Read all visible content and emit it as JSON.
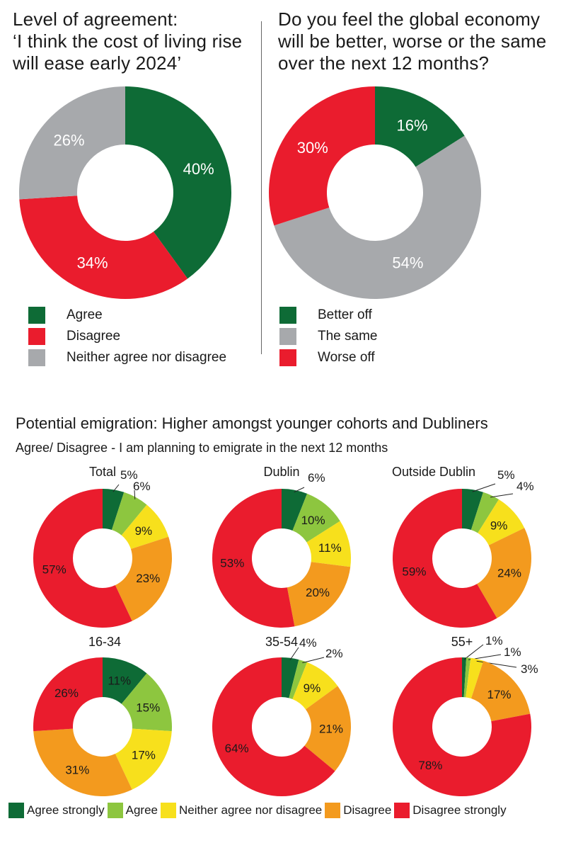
{
  "colors": {
    "agree_strongly": "#0e6b36",
    "agree": "#8dc63f",
    "neither": "#f7e01c",
    "disagree": "#f39a1e",
    "disagree_strongly": "#ea1c2d",
    "grey": "#a7a9ac"
  },
  "top_left": {
    "title_lines": [
      "Level of agreement:",
      "‘I think the cost of living rise",
      "will ease early 2024’"
    ],
    "legend": [
      "Agree",
      "Disagree",
      "Neither agree nor disagree"
    ]
  },
  "top_right": {
    "title_lines": [
      "Do you feel the global economy",
      "will be better, worse or the same",
      "over the next 12 months?"
    ],
    "legend": [
      "Better off",
      "The same",
      "Worse off"
    ]
  },
  "emigration": {
    "heading": "Potential emigration: Higher amongst younger cohorts and Dubliners",
    "subheading": "Agree/ Disagree - I am planning to emigrate in the next 12 months",
    "legend": [
      "Agree strongly",
      "Agree",
      "Neither agree nor disagree",
      "Disagree",
      "Disagree strongly"
    ]
  },
  "chart_data": [
    {
      "type": "pie",
      "id": "cost-of-living",
      "title": "Level of agreement: ‘I think the cost of living rise will ease early 2024’",
      "categories": [
        "Agree",
        "Disagree",
        "Neither agree nor disagree"
      ],
      "values": [
        40,
        34,
        26
      ],
      "labels": [
        "40%",
        "34%",
        "26%"
      ],
      "colors": [
        "#0e6b36",
        "#ea1c2d",
        "#a7a9ac"
      ]
    },
    {
      "type": "pie",
      "id": "global-economy",
      "title": "Do you feel the global economy will be better, worse or the same over the next 12 months?",
      "categories": [
        "Better off",
        "The same",
        "Worse off"
      ],
      "values": [
        16,
        54,
        30
      ],
      "labels": [
        "16%",
        "54%",
        "30%"
      ],
      "colors": [
        "#0e6b36",
        "#a7a9ac",
        "#ea1c2d"
      ]
    },
    {
      "type": "pie",
      "id": "total",
      "title": "Total",
      "categories": [
        "Agree strongly",
        "Agree",
        "Neither agree nor disagree",
        "Disagree",
        "Disagree strongly"
      ],
      "values": [
        5,
        6,
        9,
        23,
        57
      ],
      "labels": [
        "5%",
        "6%",
        "9%",
        "23%",
        "57%"
      ]
    },
    {
      "type": "pie",
      "id": "dublin",
      "title": "Dublin",
      "categories": [
        "Agree strongly",
        "Agree",
        "Neither agree nor disagree",
        "Disagree",
        "Disagree strongly"
      ],
      "values": [
        6,
        10,
        11,
        20,
        53
      ],
      "labels": [
        "6%",
        "10%",
        "11%",
        "20%",
        "53%"
      ]
    },
    {
      "type": "pie",
      "id": "outside-dublin",
      "title": "Outside Dublin",
      "categories": [
        "Agree strongly",
        "Agree",
        "Neither agree nor disagree",
        "Disagree",
        "Disagree strongly"
      ],
      "values": [
        5,
        4,
        9,
        24,
        59
      ],
      "labels": [
        "5%",
        "4%",
        "9%",
        "24%",
        "59%"
      ]
    },
    {
      "type": "pie",
      "id": "age-16-34",
      "title": "16-34",
      "categories": [
        "Agree strongly",
        "Agree",
        "Neither agree nor disagree",
        "Disagree",
        "Disagree strongly"
      ],
      "values": [
        11,
        15,
        17,
        31,
        26
      ],
      "labels": [
        "11%",
        "15%",
        "17%",
        "31%",
        "26%"
      ]
    },
    {
      "type": "pie",
      "id": "age-35-54",
      "title": "35-54",
      "categories": [
        "Agree strongly",
        "Agree",
        "Neither agree nor disagree",
        "Disagree",
        "Disagree strongly"
      ],
      "values": [
        4,
        2,
        9,
        21,
        64
      ],
      "labels": [
        "4%",
        "2%",
        "9%",
        "21%",
        "64%"
      ]
    },
    {
      "type": "pie",
      "id": "age-55-plus",
      "title": "55+",
      "categories": [
        "Agree strongly",
        "Agree",
        "Neither agree nor disagree",
        "Disagree",
        "Disagree strongly"
      ],
      "values": [
        1,
        1,
        3,
        17,
        78
      ],
      "labels": [
        "1%",
        "1%",
        "3%",
        "17%",
        "78%"
      ]
    }
  ]
}
